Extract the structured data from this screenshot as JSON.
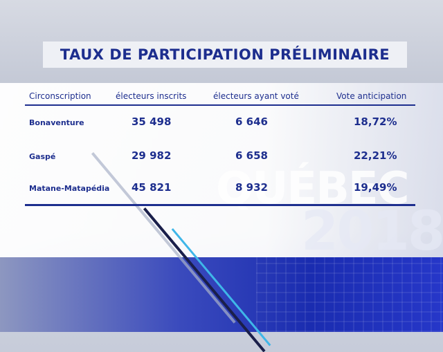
{
  "title": "TAUX DE PARTICIPATION PRÉLIMINAIRE",
  "watermark": {
    "word": "QUÉBEC",
    "year": "2018"
  },
  "table": {
    "headers": [
      "Circonscription",
      "électeurs inscrits",
      "électeurs ayant voté",
      "Vote anticipation"
    ],
    "rows": [
      [
        "Bonaventure",
        "35 498",
        "6 646",
        "18,72%"
      ],
      [
        "Gaspé",
        "29 982",
        "6 658",
        "22,21%"
      ],
      [
        "Matane-Matapédia",
        "45 821",
        "8 932",
        "19,49%"
      ]
    ]
  },
  "colors": {
    "text": "#1d2e8e",
    "accent": "#1a2cb0"
  }
}
